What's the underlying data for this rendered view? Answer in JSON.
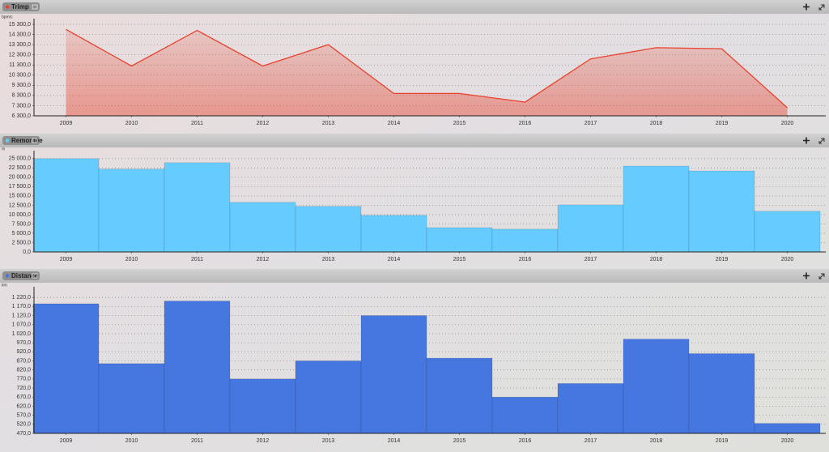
{
  "chart_data": [
    {
      "type": "line",
      "title": "Trimp",
      "unit": "bpm/c",
      "color": "#e8412c",
      "categories": [
        "2009",
        "2010",
        "2011",
        "2012",
        "2013",
        "2014",
        "2015",
        "2016",
        "2017",
        "2018",
        "2019",
        "2020"
      ],
      "values": [
        14800,
        11200,
        14700,
        11200,
        13300,
        8500,
        8500,
        7650,
        11900,
        13000,
        12900,
        7100
      ],
      "ylim": [
        6300,
        15700
      ],
      "yticks": [
        {
          "value": 6300,
          "label": "6 300,0"
        },
        {
          "value": 7300,
          "label": "7 300,0"
        },
        {
          "value": 8300,
          "label": "8 300,0"
        },
        {
          "value": 9300,
          "label": "9 300,0"
        },
        {
          "value": 10300,
          "label": "10 300,0"
        },
        {
          "value": 11300,
          "label": "11 300,0"
        },
        {
          "value": 12300,
          "label": "12 300,0"
        },
        {
          "value": 13300,
          "label": "13 300,0"
        },
        {
          "value": 14300,
          "label": "14 300,0"
        },
        {
          "value": 15300,
          "label": "15 300,0"
        }
      ],
      "grid": true
    },
    {
      "type": "bar",
      "title": "Remontée",
      "unit": "m",
      "color": "#66ccff",
      "categories": [
        "2009",
        "2010",
        "2011",
        "2012",
        "2013",
        "2014",
        "2015",
        "2016",
        "2017",
        "2018",
        "2019",
        "2020"
      ],
      "values": [
        25000,
        22200,
        23900,
        13300,
        12200,
        9800,
        6500,
        6100,
        12600,
        23000,
        21700,
        10900
      ],
      "ylim": [
        0,
        26700
      ],
      "yticks": [
        {
          "value": 0,
          "label": "0,0"
        },
        {
          "value": 2500,
          "label": "2 500,0"
        },
        {
          "value": 5000,
          "label": "5 000,0"
        },
        {
          "value": 7500,
          "label": "7 500,0"
        },
        {
          "value": 10000,
          "label": "10 000,0"
        },
        {
          "value": 12500,
          "label": "12 500,0"
        },
        {
          "value": 15000,
          "label": "15 000,0"
        },
        {
          "value": 17500,
          "label": "17 500,0"
        },
        {
          "value": 20000,
          "label": "20 000,0"
        },
        {
          "value": 22500,
          "label": "22 500,0"
        },
        {
          "value": 25000,
          "label": "25 000,0"
        }
      ],
      "grid": true
    },
    {
      "type": "bar",
      "title": "Distance",
      "unit": "km",
      "color": "#4677e0",
      "categories": [
        "2009",
        "2010",
        "2011",
        "2012",
        "2013",
        "2014",
        "2015",
        "2016",
        "2017",
        "2018",
        "2019",
        "2020"
      ],
      "values": [
        1185,
        855,
        1200,
        770,
        870,
        1120,
        885,
        670,
        745,
        990,
        910,
        525
      ],
      "ylim": [
        470,
        1270
      ],
      "yticks": [
        {
          "value": 470,
          "label": "470,0"
        },
        {
          "value": 520,
          "label": "520,0"
        },
        {
          "value": 570,
          "label": "570,0"
        },
        {
          "value": 620,
          "label": "620,0"
        },
        {
          "value": 670,
          "label": "670,0"
        },
        {
          "value": 720,
          "label": "720,0"
        },
        {
          "value": 770,
          "label": "770,0"
        },
        {
          "value": 820,
          "label": "820,0"
        },
        {
          "value": 870,
          "label": "870,0"
        },
        {
          "value": 920,
          "label": "920,0"
        },
        {
          "value": 970,
          "label": "970,0"
        },
        {
          "value": 1020,
          "label": "1 020,0"
        },
        {
          "value": 1070,
          "label": "1 070,0"
        },
        {
          "value": 1120,
          "label": "1 120,0"
        },
        {
          "value": 1170,
          "label": "1 170,0"
        },
        {
          "value": 1220,
          "label": "1 220,0"
        }
      ],
      "grid": true
    }
  ]
}
